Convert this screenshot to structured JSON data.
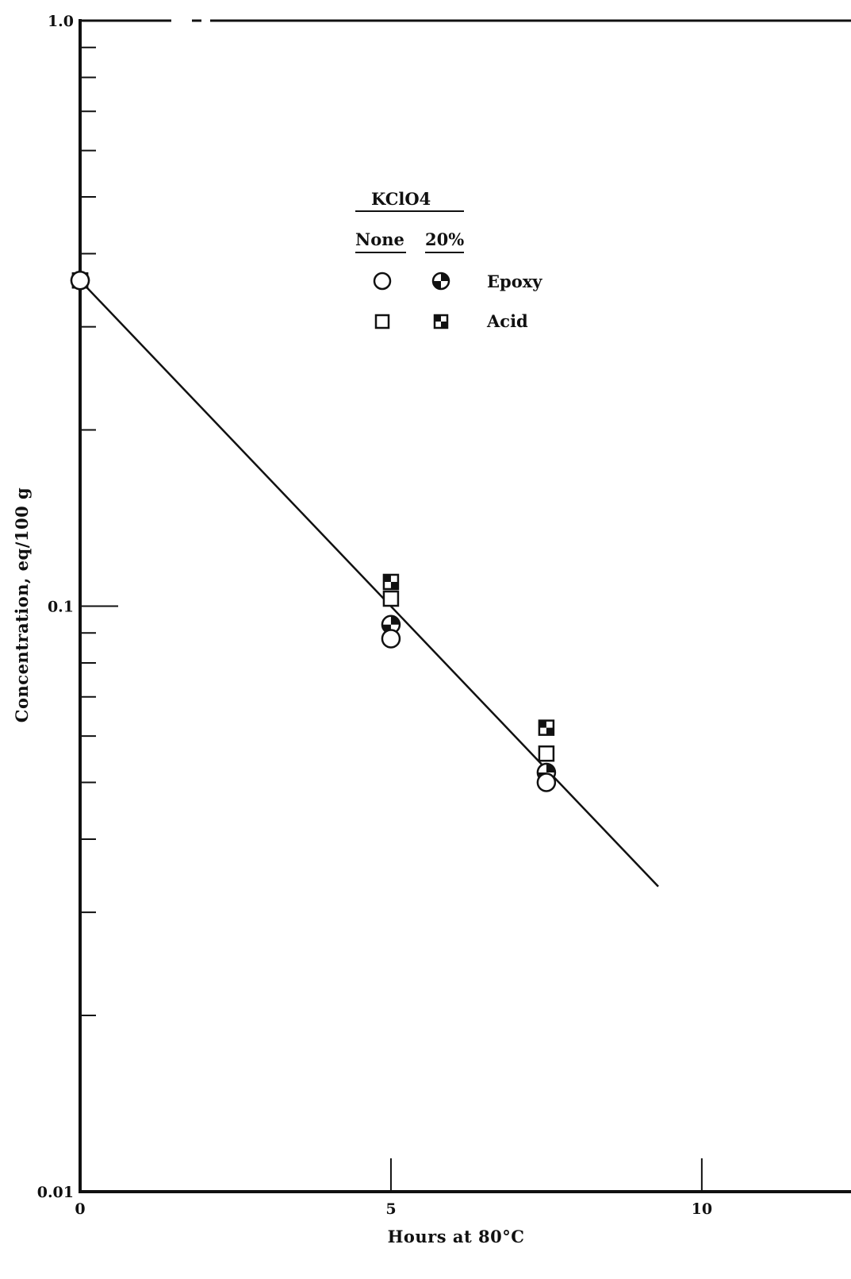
{
  "chart_data": {
    "type": "scatter",
    "xlabel": "Hours at 80°C",
    "ylabel": "Concentration, eq/100 g",
    "xlim": [
      0,
      12.4
    ],
    "ylim": [
      0.01,
      1.0
    ],
    "y_scale": "log",
    "x_ticks": [
      0,
      5,
      10
    ],
    "x_tick_labels": [
      "0",
      "5",
      "10"
    ],
    "y_tick_labels": [
      {
        "value": 1.0,
        "label": "1.0"
      },
      {
        "value": 0.1,
        "label": "0.1"
      },
      {
        "value": 0.01,
        "label": "0.01"
      }
    ],
    "grid": false,
    "legend": {
      "title": "KClO4",
      "column_headers": [
        "None",
        "20%"
      ],
      "rows": [
        {
          "label": "Epoxy",
          "none_marker": "open-circle",
          "pct20_marker": "half-filled-circle"
        },
        {
          "label": "Acid",
          "none_marker": "open-square",
          "pct20_marker": "half-filled-square"
        }
      ],
      "position": "upper-middle"
    },
    "series": [
      {
        "key": "epoxy_none",
        "marker": "open-circle",
        "x": [
          0,
          5,
          7.5
        ],
        "y": [
          0.36,
          0.088,
          0.05
        ]
      },
      {
        "key": "epoxy_20",
        "marker": "half-filled-circle",
        "x": [
          0,
          5,
          7.5
        ],
        "y": [
          0.36,
          0.093,
          0.052
        ]
      },
      {
        "key": "acid_none",
        "marker": "open-square",
        "x": [
          0,
          5,
          7.5
        ],
        "y": [
          0.36,
          0.103,
          0.056
        ]
      },
      {
        "key": "acid_20",
        "marker": "half-filled-square",
        "x": [
          0,
          5,
          7.5
        ],
        "y": [
          0.36,
          0.11,
          0.062
        ]
      }
    ],
    "fit_line": {
      "x": [
        0,
        9.3
      ],
      "y": [
        0.36,
        0.0332
      ]
    }
  }
}
